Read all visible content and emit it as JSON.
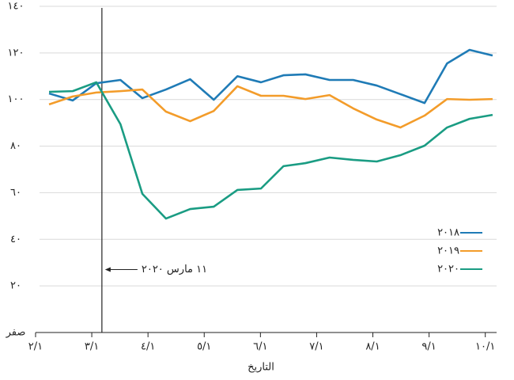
{
  "chart_data": {
    "type": "line",
    "x_label": "التاريخ",
    "x": [
      2.24,
      2.66,
      3.08,
      3.51,
      3.9,
      4.32,
      4.75,
      5.17,
      5.59,
      6.01,
      6.41,
      6.8,
      7.23,
      7.65,
      8.07,
      8.49,
      8.92,
      9.32,
      9.72,
      10.13
    ],
    "series": [
      {
        "name": "٢٠١٨",
        "color": "#1f7bb6",
        "values": [
          102.6,
          99.6,
          107,
          108.4,
          100.6,
          104.3,
          108.7,
          99.9,
          110,
          107.4,
          110.4,
          110.8,
          108.4,
          108.4,
          106,
          102.3,
          98.5,
          115.5,
          121.3,
          118.9
        ]
      },
      {
        "name": "٢٠١٩",
        "color": "#f39c2a",
        "values": [
          97.9,
          101.3,
          103,
          103.6,
          104.3,
          94.8,
          90.7,
          95.1,
          105.7,
          101.6,
          101.6,
          100.2,
          101.9,
          96.2,
          91.4,
          88,
          93.1,
          100.2,
          99.9,
          100.2
        ]
      },
      {
        "name": "٢٠٢٠",
        "color": "#1a9c83",
        "values": [
          103.3,
          103.6,
          107.4,
          89.4,
          59.5,
          48.9,
          53,
          54,
          61.2,
          61.8,
          71.4,
          72.7,
          75.1,
          74.1,
          73.4,
          76.1,
          80.2,
          88,
          91.7,
          93.4
        ]
      }
    ],
    "xlim": [
      1.93,
      10.37
    ],
    "xticks": [
      {
        "value": 2,
        "label": "٢/١"
      },
      {
        "value": 3,
        "label": "٣/١"
      },
      {
        "value": 4,
        "label": "٤/١"
      },
      {
        "value": 5,
        "label": "٥/١"
      },
      {
        "value": 6,
        "label": "٦/١"
      },
      {
        "value": 7,
        "label": "٧/١"
      },
      {
        "value": 8,
        "label": "٨/١"
      },
      {
        "value": 9,
        "label": "٩/١"
      },
      {
        "value": 10,
        "label": "١٠/١"
      }
    ],
    "ylim": [
      0,
      140
    ],
    "yticks": [
      {
        "value": 0,
        "label": "صفر"
      },
      {
        "value": 20,
        "label": "٢٠"
      },
      {
        "value": 40,
        "label": "٤٠"
      },
      {
        "value": 60,
        "label": "٦٠"
      },
      {
        "value": 80,
        "label": "٨٠"
      },
      {
        "value": 100,
        "label": "١٠٠"
      },
      {
        "value": 120,
        "label": "١٢٠"
      },
      {
        "value": 140,
        "label": "١٤٠"
      }
    ],
    "grid": true,
    "legend": "lower right",
    "event_line": {
      "x": 3.18,
      "label": "١١ مارس ٢٠٢٠"
    }
  }
}
